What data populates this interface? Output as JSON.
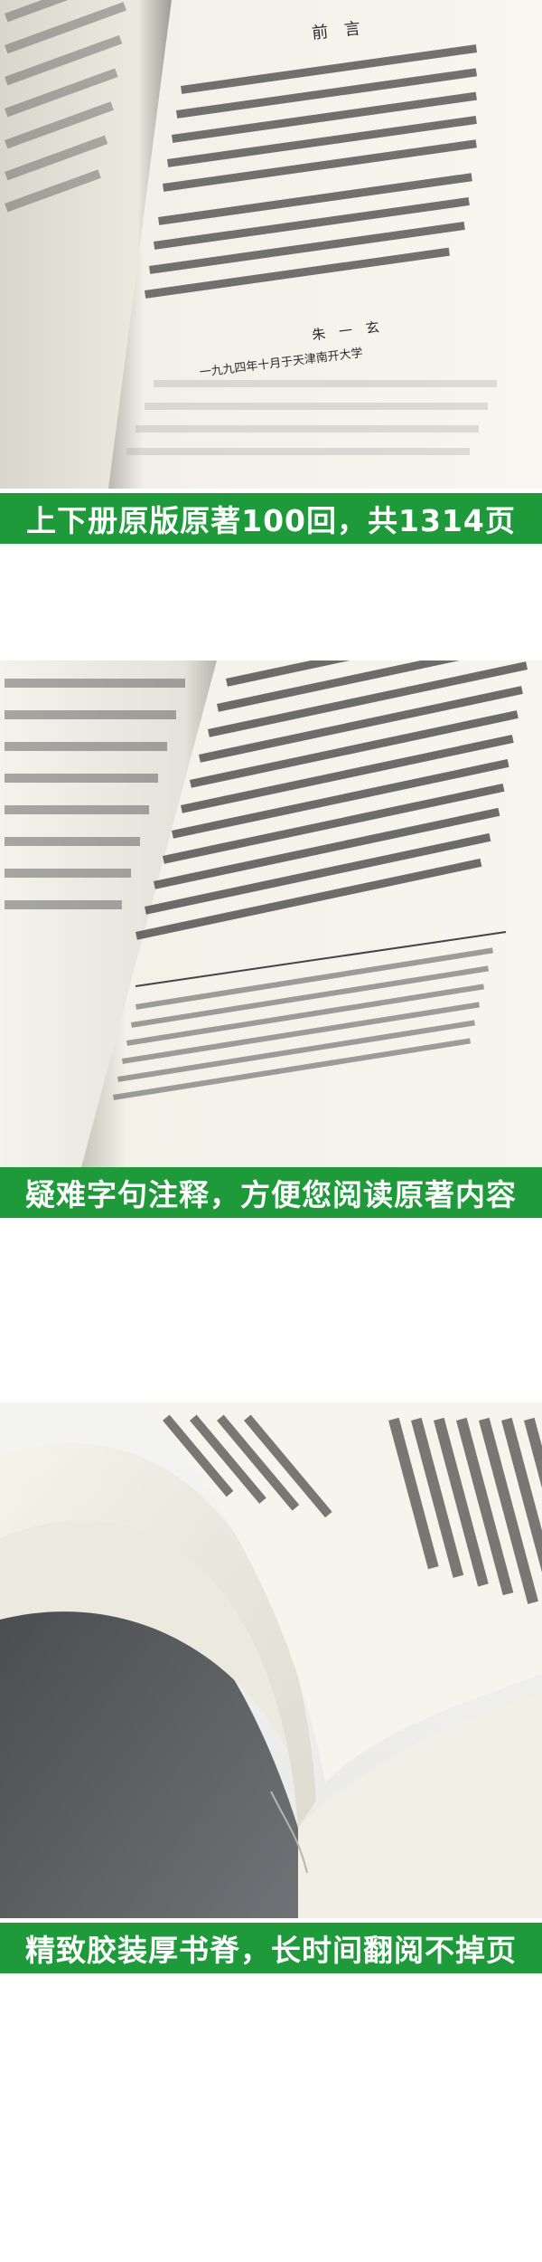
{
  "banners": {
    "first": "上下册原版原著100回，共1314页",
    "second": "疑难字句注释，方便您阅读原著内容",
    "third": "精致胶装厚书脊，长时间翻阅不掉页"
  },
  "photo1": {
    "heading": "前　言",
    "signature": "朱　一　玄",
    "date_line": "一九九四年十月于天津南开大学"
  },
  "colors": {
    "banner_green": "#1f9a3a",
    "paper": "#f4f2ea",
    "ink": "#2b2b2b"
  }
}
